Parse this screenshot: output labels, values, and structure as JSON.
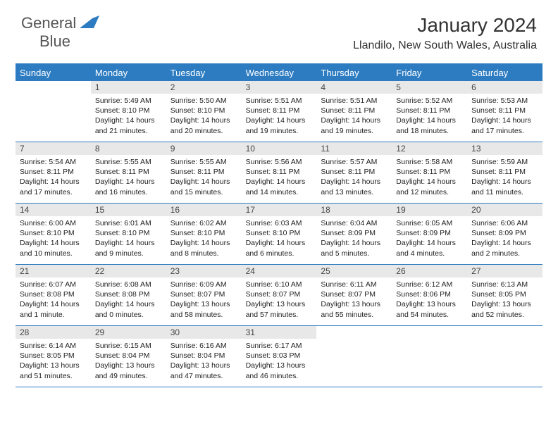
{
  "logo": {
    "text1": "General",
    "text2": "Blue"
  },
  "title": "January 2024",
  "location": "Llandilo, New South Wales, Australia",
  "day_names": [
    "Sunday",
    "Monday",
    "Tuesday",
    "Wednesday",
    "Thursday",
    "Friday",
    "Saturday"
  ],
  "header_bg": "#2d7cc1",
  "daynum_bg": "#e8e8e8",
  "weeks": [
    [
      {
        "n": "",
        "sr": "",
        "ss": "",
        "dl": ""
      },
      {
        "n": "1",
        "sr": "Sunrise: 5:49 AM",
        "ss": "Sunset: 8:10 PM",
        "dl": "Daylight: 14 hours and 21 minutes."
      },
      {
        "n": "2",
        "sr": "Sunrise: 5:50 AM",
        "ss": "Sunset: 8:10 PM",
        "dl": "Daylight: 14 hours and 20 minutes."
      },
      {
        "n": "3",
        "sr": "Sunrise: 5:51 AM",
        "ss": "Sunset: 8:11 PM",
        "dl": "Daylight: 14 hours and 19 minutes."
      },
      {
        "n": "4",
        "sr": "Sunrise: 5:51 AM",
        "ss": "Sunset: 8:11 PM",
        "dl": "Daylight: 14 hours and 19 minutes."
      },
      {
        "n": "5",
        "sr": "Sunrise: 5:52 AM",
        "ss": "Sunset: 8:11 PM",
        "dl": "Daylight: 14 hours and 18 minutes."
      },
      {
        "n": "6",
        "sr": "Sunrise: 5:53 AM",
        "ss": "Sunset: 8:11 PM",
        "dl": "Daylight: 14 hours and 17 minutes."
      }
    ],
    [
      {
        "n": "7",
        "sr": "Sunrise: 5:54 AM",
        "ss": "Sunset: 8:11 PM",
        "dl": "Daylight: 14 hours and 17 minutes."
      },
      {
        "n": "8",
        "sr": "Sunrise: 5:55 AM",
        "ss": "Sunset: 8:11 PM",
        "dl": "Daylight: 14 hours and 16 minutes."
      },
      {
        "n": "9",
        "sr": "Sunrise: 5:55 AM",
        "ss": "Sunset: 8:11 PM",
        "dl": "Daylight: 14 hours and 15 minutes."
      },
      {
        "n": "10",
        "sr": "Sunrise: 5:56 AM",
        "ss": "Sunset: 8:11 PM",
        "dl": "Daylight: 14 hours and 14 minutes."
      },
      {
        "n": "11",
        "sr": "Sunrise: 5:57 AM",
        "ss": "Sunset: 8:11 PM",
        "dl": "Daylight: 14 hours and 13 minutes."
      },
      {
        "n": "12",
        "sr": "Sunrise: 5:58 AM",
        "ss": "Sunset: 8:11 PM",
        "dl": "Daylight: 14 hours and 12 minutes."
      },
      {
        "n": "13",
        "sr": "Sunrise: 5:59 AM",
        "ss": "Sunset: 8:11 PM",
        "dl": "Daylight: 14 hours and 11 minutes."
      }
    ],
    [
      {
        "n": "14",
        "sr": "Sunrise: 6:00 AM",
        "ss": "Sunset: 8:10 PM",
        "dl": "Daylight: 14 hours and 10 minutes."
      },
      {
        "n": "15",
        "sr": "Sunrise: 6:01 AM",
        "ss": "Sunset: 8:10 PM",
        "dl": "Daylight: 14 hours and 9 minutes."
      },
      {
        "n": "16",
        "sr": "Sunrise: 6:02 AM",
        "ss": "Sunset: 8:10 PM",
        "dl": "Daylight: 14 hours and 8 minutes."
      },
      {
        "n": "17",
        "sr": "Sunrise: 6:03 AM",
        "ss": "Sunset: 8:10 PM",
        "dl": "Daylight: 14 hours and 6 minutes."
      },
      {
        "n": "18",
        "sr": "Sunrise: 6:04 AM",
        "ss": "Sunset: 8:09 PM",
        "dl": "Daylight: 14 hours and 5 minutes."
      },
      {
        "n": "19",
        "sr": "Sunrise: 6:05 AM",
        "ss": "Sunset: 8:09 PM",
        "dl": "Daylight: 14 hours and 4 minutes."
      },
      {
        "n": "20",
        "sr": "Sunrise: 6:06 AM",
        "ss": "Sunset: 8:09 PM",
        "dl": "Daylight: 14 hours and 2 minutes."
      }
    ],
    [
      {
        "n": "21",
        "sr": "Sunrise: 6:07 AM",
        "ss": "Sunset: 8:08 PM",
        "dl": "Daylight: 14 hours and 1 minute."
      },
      {
        "n": "22",
        "sr": "Sunrise: 6:08 AM",
        "ss": "Sunset: 8:08 PM",
        "dl": "Daylight: 14 hours and 0 minutes."
      },
      {
        "n": "23",
        "sr": "Sunrise: 6:09 AM",
        "ss": "Sunset: 8:07 PM",
        "dl": "Daylight: 13 hours and 58 minutes."
      },
      {
        "n": "24",
        "sr": "Sunrise: 6:10 AM",
        "ss": "Sunset: 8:07 PM",
        "dl": "Daylight: 13 hours and 57 minutes."
      },
      {
        "n": "25",
        "sr": "Sunrise: 6:11 AM",
        "ss": "Sunset: 8:07 PM",
        "dl": "Daylight: 13 hours and 55 minutes."
      },
      {
        "n": "26",
        "sr": "Sunrise: 6:12 AM",
        "ss": "Sunset: 8:06 PM",
        "dl": "Daylight: 13 hours and 54 minutes."
      },
      {
        "n": "27",
        "sr": "Sunrise: 6:13 AM",
        "ss": "Sunset: 8:05 PM",
        "dl": "Daylight: 13 hours and 52 minutes."
      }
    ],
    [
      {
        "n": "28",
        "sr": "Sunrise: 6:14 AM",
        "ss": "Sunset: 8:05 PM",
        "dl": "Daylight: 13 hours and 51 minutes."
      },
      {
        "n": "29",
        "sr": "Sunrise: 6:15 AM",
        "ss": "Sunset: 8:04 PM",
        "dl": "Daylight: 13 hours and 49 minutes."
      },
      {
        "n": "30",
        "sr": "Sunrise: 6:16 AM",
        "ss": "Sunset: 8:04 PM",
        "dl": "Daylight: 13 hours and 47 minutes."
      },
      {
        "n": "31",
        "sr": "Sunrise: 6:17 AM",
        "ss": "Sunset: 8:03 PM",
        "dl": "Daylight: 13 hours and 46 minutes."
      },
      {
        "n": "",
        "sr": "",
        "ss": "",
        "dl": ""
      },
      {
        "n": "",
        "sr": "",
        "ss": "",
        "dl": ""
      },
      {
        "n": "",
        "sr": "",
        "ss": "",
        "dl": ""
      }
    ]
  ]
}
